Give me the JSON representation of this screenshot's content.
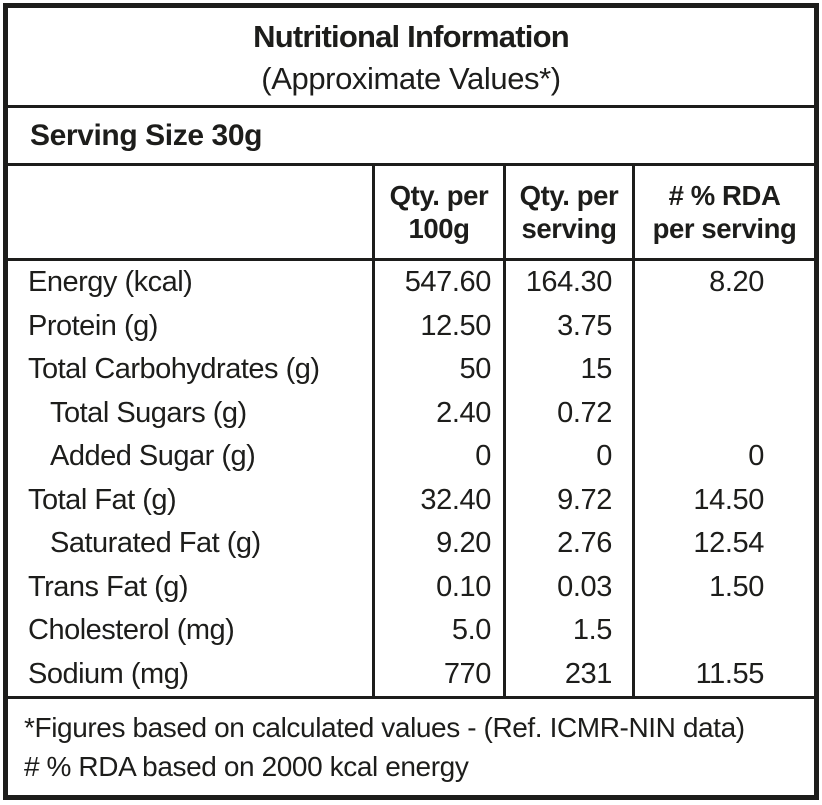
{
  "colors": {
    "ink": "#1d1d1b",
    "paper": "#ffffff"
  },
  "title": {
    "line1": "Nutritional Information",
    "line2": "(Approximate Values*)"
  },
  "serving": {
    "label": "Serving Size 30g"
  },
  "table": {
    "columns": [
      {
        "line1": "",
        "line2": ""
      },
      {
        "line1": "Qty. per",
        "line2": "100g"
      },
      {
        "line1": "Qty. per",
        "line2": "serving"
      },
      {
        "line1": "# % RDA",
        "line2": "per serving"
      }
    ],
    "rows": [
      {
        "label": "Energy (kcal)",
        "indent": false,
        "per100": "547.60",
        "perServing": "164.30",
        "rda": "8.20"
      },
      {
        "label": "Protein (g)",
        "indent": false,
        "per100": "12.50",
        "perServing": "3.75",
        "rda": ""
      },
      {
        "label": "Total Carbohydrates (g)",
        "indent": false,
        "per100": "50",
        "perServing": "15",
        "rda": ""
      },
      {
        "label": "Total Sugars (g)",
        "indent": true,
        "per100": "2.40",
        "perServing": "0.72",
        "rda": ""
      },
      {
        "label": "Added Sugar (g)",
        "indent": true,
        "per100": "0",
        "perServing": "0",
        "rda": "0"
      },
      {
        "label": "Total Fat (g)",
        "indent": false,
        "per100": "32.40",
        "perServing": "9.72",
        "rda": "14.50"
      },
      {
        "label": "Saturated Fat (g)",
        "indent": true,
        "per100": "9.20",
        "perServing": "2.76",
        "rda": "12.54"
      },
      {
        "label": "Trans Fat (g)",
        "indent": false,
        "per100": "0.10",
        "perServing": "0.03",
        "rda": "1.50"
      },
      {
        "label": "Cholesterol (mg)",
        "indent": false,
        "per100": "5.0",
        "perServing": "1.5",
        "rda": ""
      },
      {
        "label": "Sodium (mg)",
        "indent": false,
        "per100": "770",
        "perServing": "231",
        "rda": "11.55"
      }
    ]
  },
  "footnotes": {
    "line1": "*Figures based on calculated values - (Ref. ICMR-NIN data)",
    "line2": "# % RDA based on 2000 kcal energy"
  }
}
